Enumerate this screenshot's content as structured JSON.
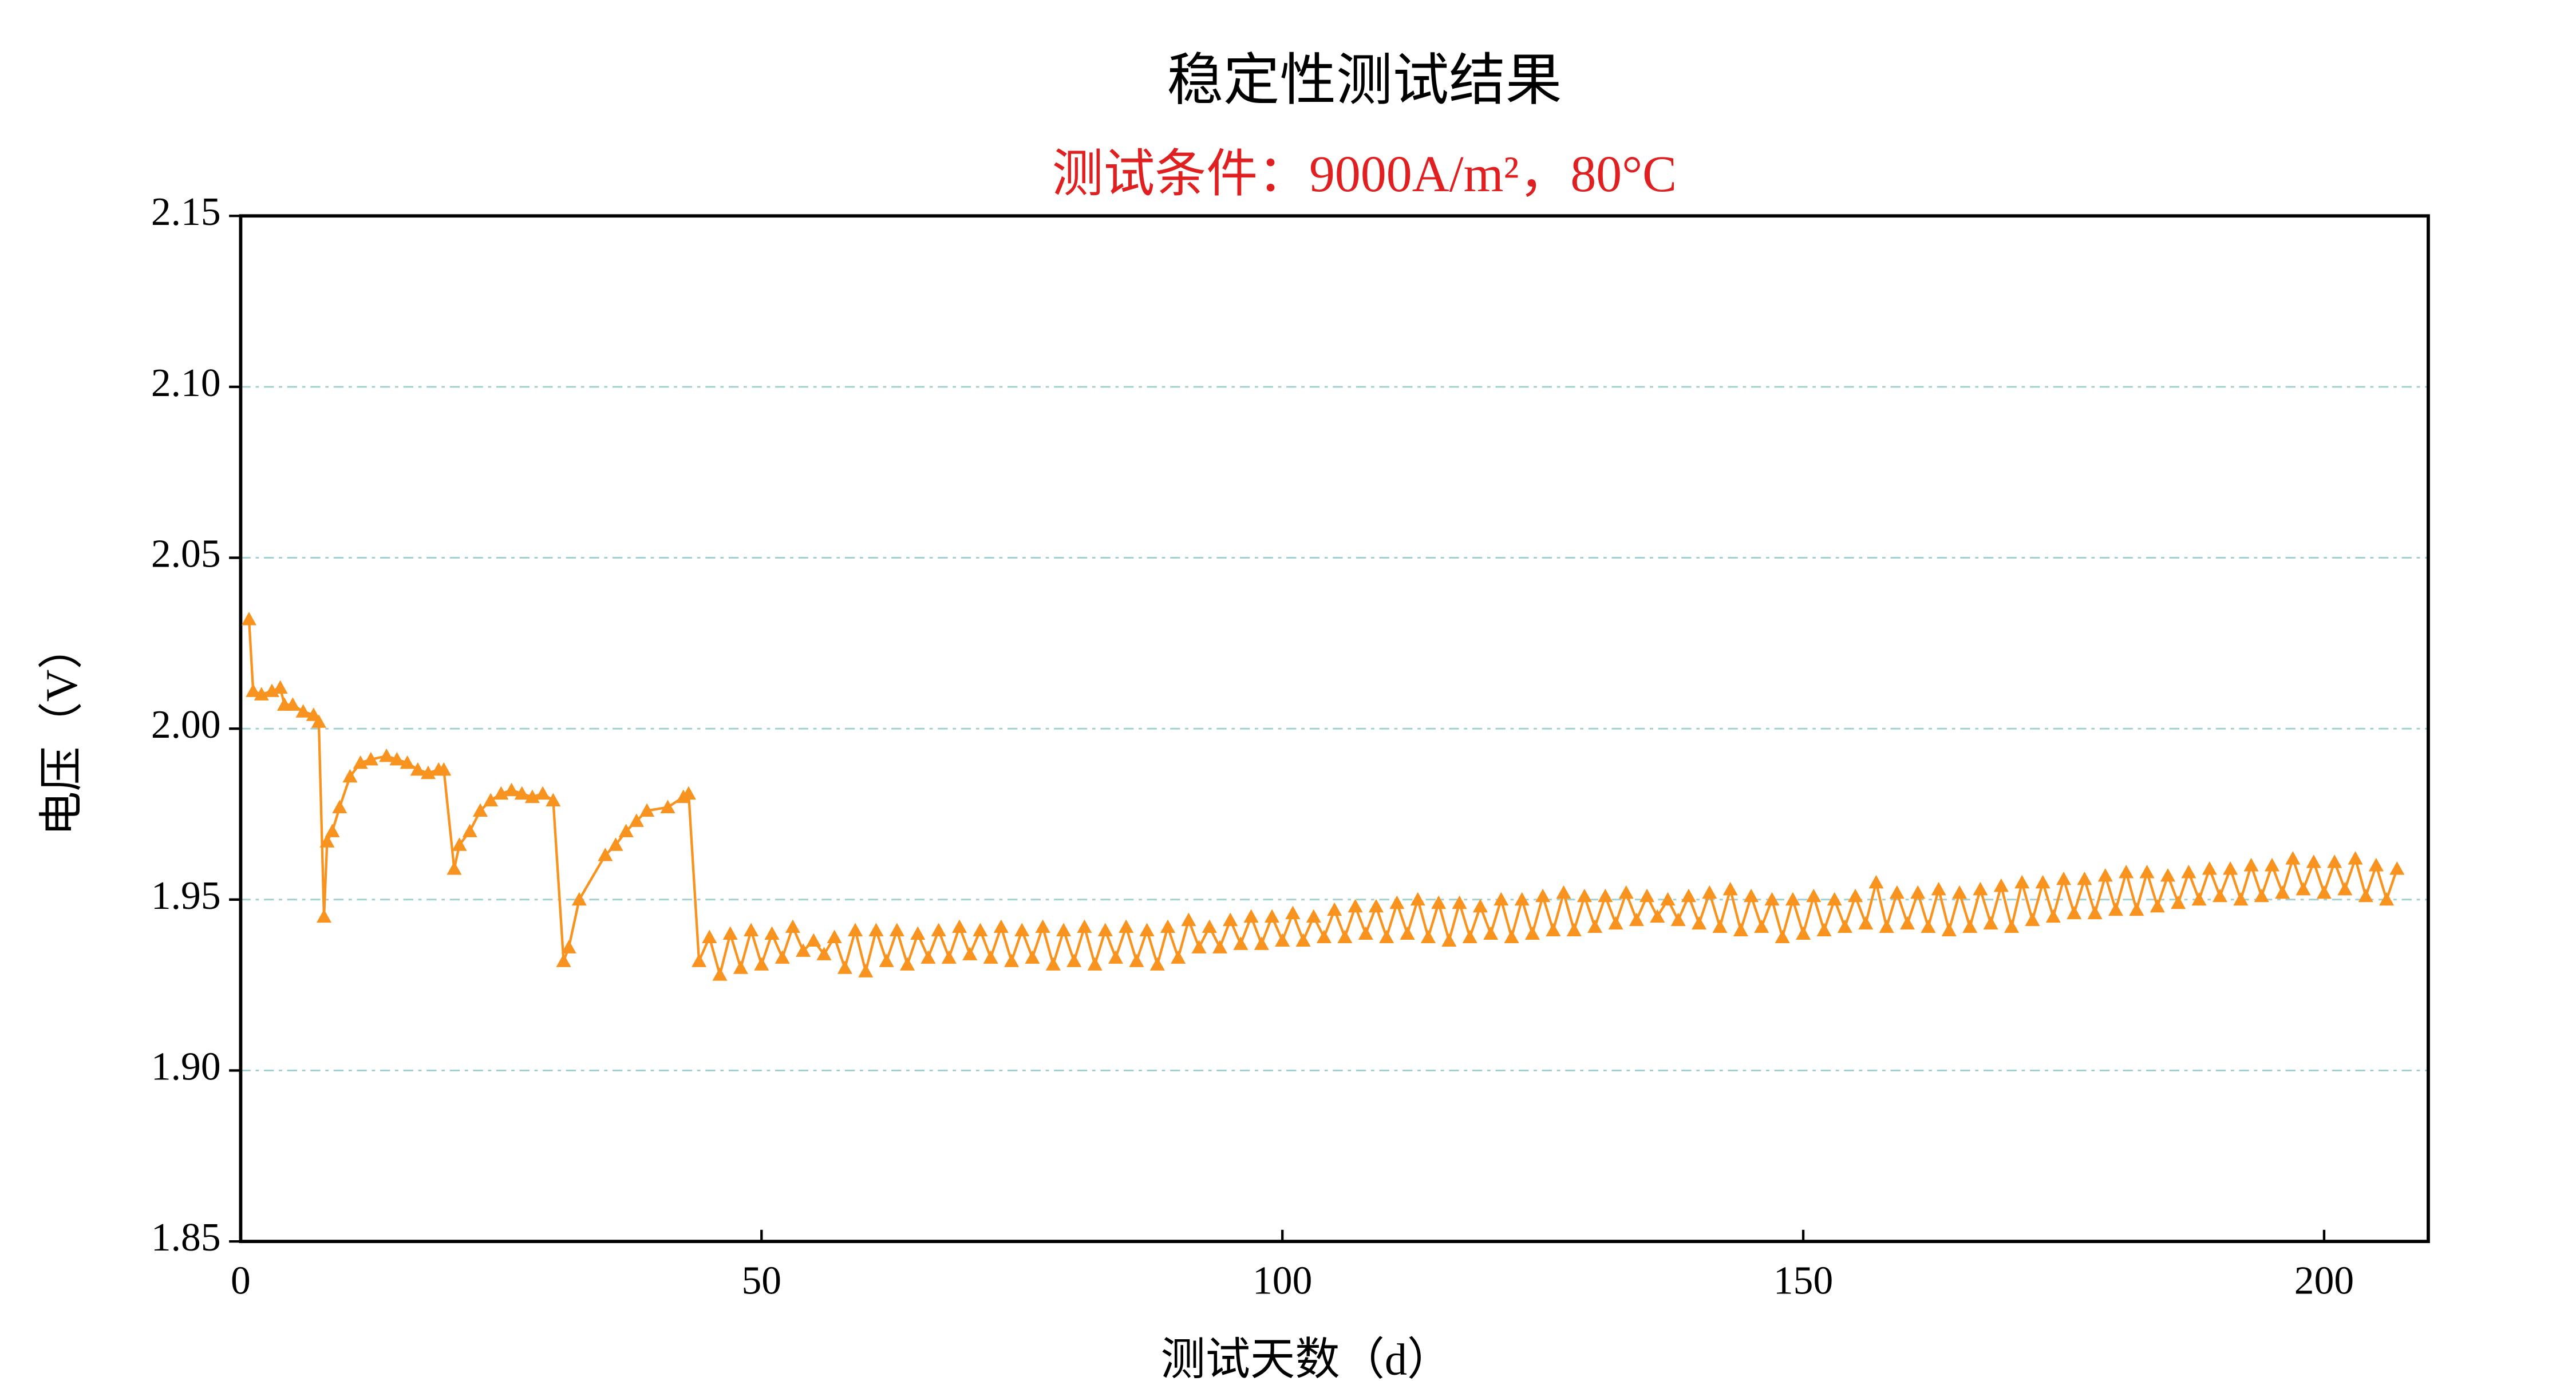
{
  "chart_data": {
    "type": "line",
    "title": "稳定性测试结果",
    "subtitle": "测试条件：9000A/m²，80°C",
    "x_label": "测试天数（d）",
    "y_label": "电压（V）",
    "color": "#f7931e",
    "marker": "triangle",
    "grid": true,
    "xlim": [
      0,
      210
    ],
    "xticks": [
      0,
      50,
      100,
      150,
      200
    ],
    "ylim": [
      1.85,
      2.15
    ],
    "yticks": [
      1.85,
      {
        "value": 1.9,
        "label": "1.90"
      },
      1.95,
      {
        "value": 2.0,
        "label": "2.00"
      },
      2.05,
      {
        "value": 2.1,
        "label": "2.10"
      },
      2.15
    ],
    "x": [
      0.8,
      1.2,
      2,
      3,
      3.8,
      4.2,
      5,
      6,
      7,
      7.5,
      8,
      8.3,
      8.8,
      9.5,
      10.5,
      11.5,
      12.5,
      14,
      15,
      16,
      17,
      18,
      19,
      19.5,
      20.5,
      21,
      22,
      23,
      24,
      25,
      26,
      27,
      28,
      29,
      30,
      31,
      31.5,
      32.5,
      35,
      36,
      37,
      38,
      39,
      41,
      42.5,
      43,
      44,
      45,
      46,
      47,
      48,
      49,
      50,
      51,
      52,
      53,
      54,
      55,
      56,
      57,
      58,
      59,
      60,
      61,
      62,
      63,
      64,
      65,
      66,
      67,
      68,
      69,
      70,
      71,
      72,
      73,
      74,
      75,
      76,
      77,
      78,
      79,
      80,
      81,
      82,
      83,
      84,
      85,
      86,
      87,
      88,
      89,
      90,
      91,
      92,
      93,
      94,
      95,
      96,
      97,
      98,
      99,
      100,
      101,
      102,
      103,
      104,
      105,
      106,
      107,
      108,
      109,
      110,
      111,
      112,
      113,
      114,
      115,
      116,
      117,
      118,
      119,
      120,
      121,
      122,
      123,
      124,
      125,
      126,
      127,
      128,
      129,
      130,
      131,
      132,
      133,
      134,
      135,
      136,
      137,
      138,
      139,
      140,
      141,
      142,
      143,
      144,
      145,
      146,
      147,
      148,
      149,
      150,
      151,
      152,
      153,
      154,
      155,
      156,
      157,
      158,
      159,
      160,
      161,
      162,
      163,
      164,
      165,
      166,
      167,
      168,
      169,
      170,
      171,
      172,
      173,
      174,
      175,
      176,
      177,
      178,
      179,
      180,
      181,
      182,
      183,
      184,
      185,
      186,
      187,
      188,
      189,
      190,
      191,
      192,
      193,
      194,
      195,
      196,
      197,
      198,
      199,
      200,
      201,
      202,
      203,
      204,
      205,
      206,
      207
    ],
    "values": [
      2.032,
      2.011,
      2.01,
      2.011,
      2.012,
      2.007,
      2.007,
      2.005,
      2.004,
      2.002,
      1.945,
      1.967,
      1.97,
      1.977,
      1.986,
      1.99,
      1.991,
      1.992,
      1.991,
      1.99,
      1.988,
      1.987,
      1.988,
      1.988,
      1.959,
      1.966,
      1.97,
      1.976,
      1.979,
      1.981,
      1.982,
      1.981,
      1.98,
      1.981,
      1.979,
      1.932,
      1.936,
      1.95,
      1.963,
      1.966,
      1.97,
      1.973,
      1.976,
      1.977,
      1.98,
      1.981,
      1.932,
      1.939,
      1.928,
      1.94,
      1.93,
      1.941,
      1.931,
      1.94,
      1.933,
      1.942,
      1.935,
      1.938,
      1.934,
      1.939,
      1.93,
      1.941,
      1.929,
      1.941,
      1.932,
      1.941,
      1.931,
      1.94,
      1.933,
      1.941,
      1.933,
      1.942,
      1.934,
      1.941,
      1.933,
      1.942,
      1.932,
      1.941,
      1.933,
      1.942,
      1.931,
      1.941,
      1.932,
      1.942,
      1.931,
      1.941,
      1.933,
      1.942,
      1.932,
      1.941,
      1.931,
      1.942,
      1.933,
      1.944,
      1.936,
      1.942,
      1.936,
      1.944,
      1.937,
      1.945,
      1.937,
      1.945,
      1.938,
      1.946,
      1.938,
      1.945,
      1.939,
      1.947,
      1.939,
      1.948,
      1.94,
      1.948,
      1.939,
      1.949,
      1.94,
      1.95,
      1.939,
      1.949,
      1.938,
      1.949,
      1.939,
      1.948,
      1.94,
      1.95,
      1.939,
      1.95,
      1.94,
      1.951,
      1.941,
      1.952,
      1.941,
      1.951,
      1.942,
      1.951,
      1.943,
      1.952,
      1.944,
      1.951,
      1.945,
      1.95,
      1.944,
      1.951,
      1.943,
      1.952,
      1.942,
      1.953,
      1.941,
      1.951,
      1.942,
      1.95,
      1.939,
      1.95,
      1.94,
      1.951,
      1.941,
      1.95,
      1.942,
      1.951,
      1.943,
      1.955,
      1.942,
      1.952,
      1.943,
      1.952,
      1.942,
      1.953,
      1.941,
      1.952,
      1.942,
      1.953,
      1.943,
      1.954,
      1.942,
      1.955,
      1.944,
      1.955,
      1.945,
      1.956,
      1.946,
      1.956,
      1.946,
      1.957,
      1.947,
      1.958,
      1.947,
      1.958,
      1.948,
      1.957,
      1.949,
      1.958,
      1.95,
      1.959,
      1.951,
      1.959,
      1.95,
      1.96,
      1.951,
      1.96,
      1.952,
      1.962,
      1.953,
      1.961,
      1.952,
      1.961,
      1.953,
      1.962,
      1.951,
      1.96,
      1.95,
      1.959
    ]
  }
}
